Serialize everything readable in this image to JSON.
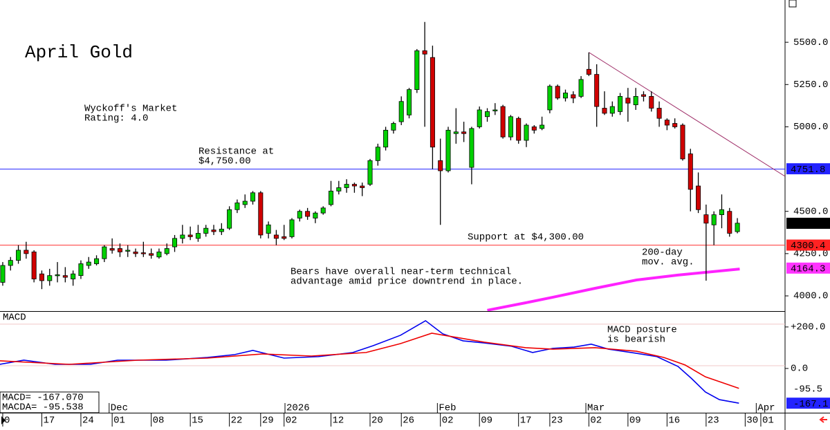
{
  "chart_data": {
    "type": "candlestick",
    "title": "April Gold",
    "xlim": [
      -0.35,
      100.1
    ],
    "xticks": [
      {
        "value": 0,
        "label": "0"
      },
      {
        "value": 5,
        "label": "17"
      },
      {
        "value": 10,
        "label": "24"
      },
      {
        "value": 14,
        "label": "01"
      },
      {
        "value": 19,
        "label": "08"
      },
      {
        "value": 24,
        "label": "15"
      },
      {
        "value": 29,
        "label": "22"
      },
      {
        "value": 33,
        "label": "29"
      },
      {
        "value": 36,
        "label": "02"
      },
      {
        "value": 42,
        "label": "12"
      },
      {
        "value": 47,
        "label": "20"
      },
      {
        "value": 51,
        "label": "26"
      },
      {
        "value": 56,
        "label": "02"
      },
      {
        "value": 61,
        "label": "09"
      },
      {
        "value": 66,
        "label": "17"
      },
      {
        "value": 70,
        "label": "23"
      },
      {
        "value": 75,
        "label": "02"
      },
      {
        "value": 80,
        "label": "09"
      },
      {
        "value": 85,
        "label": "16"
      },
      {
        "value": 90,
        "label": "23"
      },
      {
        "value": 95,
        "label": "30"
      },
      {
        "value": 97,
        "label": "01"
      }
    ],
    "month_labels": [
      {
        "value": 14.5,
        "label": "Dec"
      },
      {
        "value": 37,
        "label": "2026"
      },
      {
        "value": 56.5,
        "label": "Feb"
      },
      {
        "value": 75.5,
        "label": "Mar"
      },
      {
        "value": 97.3,
        "label": "Apr"
      }
    ],
    "ylim": [
      3910,
      5750
    ],
    "yticks": [
      {
        "value": 4000,
        "label": "4000.0"
      },
      {
        "value": 4250,
        "label": "4250.0"
      },
      {
        "value": 4500,
        "label": "4500.0"
      },
      {
        "value": 5000,
        "label": "5000.0"
      },
      {
        "value": 5250,
        "label": "5250.0"
      },
      {
        "value": 5500,
        "label": "5500.0"
      }
    ],
    "up_color": "#00d000",
    "down_color": "#d00000",
    "candles": [
      {
        "open": 4080,
        "high": 4200,
        "low": 4060,
        "close": 4180
      },
      {
        "open": 4180,
        "high": 4230,
        "low": 4150,
        "close": 4210
      },
      {
        "open": 4210,
        "high": 4300,
        "low": 4190,
        "close": 4270
      },
      {
        "open": 4270,
        "high": 4320,
        "low": 4220,
        "close": 4250
      },
      {
        "open": 4260,
        "high": 4270,
        "low": 4080,
        "close": 4100
      },
      {
        "open": 4130,
        "high": 4150,
        "low": 4040,
        "close": 4090
      },
      {
        "open": 4090,
        "high": 4160,
        "low": 4060,
        "close": 4120
      },
      {
        "open": 4120,
        "high": 4200,
        "low": 4080,
        "close": 4125
      },
      {
        "open": 4120,
        "high": 4170,
        "low": 4080,
        "close": 4110
      },
      {
        "open": 4100,
        "high": 4150,
        "low": 4060,
        "close": 4130
      },
      {
        "open": 4120,
        "high": 4210,
        "low": 4100,
        "close": 4190
      },
      {
        "open": 4180,
        "high": 4230,
        "low": 4160,
        "close": 4200
      },
      {
        "open": 4190,
        "high": 4240,
        "low": 4180,
        "close": 4220
      },
      {
        "open": 4220,
        "high": 4300,
        "low": 4200,
        "close": 4290
      },
      {
        "open": 4280,
        "high": 4340,
        "low": 4250,
        "close": 4270
      },
      {
        "open": 4280,
        "high": 4310,
        "low": 4230,
        "close": 4260
      },
      {
        "open": 4265,
        "high": 4300,
        "low": 4230,
        "close": 4270
      },
      {
        "open": 4260,
        "high": 4280,
        "low": 4230,
        "close": 4250
      },
      {
        "open": 4255,
        "high": 4320,
        "low": 4230,
        "close": 4250
      },
      {
        "open": 4250,
        "high": 4280,
        "low": 4220,
        "close": 4240
      },
      {
        "open": 4230,
        "high": 4280,
        "low": 4220,
        "close": 4260
      },
      {
        "open": 4250,
        "high": 4310,
        "low": 4240,
        "close": 4280
      },
      {
        "open": 4290,
        "high": 4360,
        "low": 4260,
        "close": 4340
      },
      {
        "open": 4340,
        "high": 4420,
        "low": 4310,
        "close": 4360
      },
      {
        "open": 4360,
        "high": 4410,
        "low": 4330,
        "close": 4350
      },
      {
        "open": 4340,
        "high": 4420,
        "low": 4320,
        "close": 4370
      },
      {
        "open": 4370,
        "high": 4420,
        "low": 4350,
        "close": 4400
      },
      {
        "open": 4390,
        "high": 4420,
        "low": 4360,
        "close": 4380
      },
      {
        "open": 4380,
        "high": 4430,
        "low": 4360,
        "close": 4395
      },
      {
        "open": 4400,
        "high": 4530,
        "low": 4390,
        "close": 4510
      },
      {
        "open": 4510,
        "high": 4570,
        "low": 4490,
        "close": 4550
      },
      {
        "open": 4540,
        "high": 4600,
        "low": 4520,
        "close": 4560
      },
      {
        "open": 4560,
        "high": 4620,
        "low": 4540,
        "close": 4610
      },
      {
        "open": 4610,
        "high": 4620,
        "low": 4340,
        "close": 4360
      },
      {
        "open": 4370,
        "high": 4440,
        "low": 4340,
        "close": 4420
      },
      {
        "open": 4360,
        "high": 4390,
        "low": 4300,
        "close": 4340
      },
      {
        "open": 4350,
        "high": 4420,
        "low": 4330,
        "close": 4340
      },
      {
        "open": 4350,
        "high": 4460,
        "low": 4340,
        "close": 4450
      },
      {
        "open": 4460,
        "high": 4510,
        "low": 4440,
        "close": 4500
      },
      {
        "open": 4500,
        "high": 4520,
        "low": 4450,
        "close": 4470
      },
      {
        "open": 4460,
        "high": 4500,
        "low": 4430,
        "close": 4490
      },
      {
        "open": 4490,
        "high": 4530,
        "low": 4480,
        "close": 4520
      },
      {
        "open": 4540,
        "high": 4680,
        "low": 4530,
        "close": 4620
      },
      {
        "open": 4620,
        "high": 4680,
        "low": 4600,
        "close": 4640
      },
      {
        "open": 4640,
        "high": 4690,
        "low": 4610,
        "close": 4660
      },
      {
        "open": 4660,
        "high": 4670,
        "low": 4610,
        "close": 4650
      },
      {
        "open": 4650,
        "high": 4670,
        "low": 4590,
        "close": 4640
      },
      {
        "open": 4660,
        "high": 4810,
        "low": 4650,
        "close": 4800
      },
      {
        "open": 4800,
        "high": 4900,
        "low": 4770,
        "close": 4880
      },
      {
        "open": 4880,
        "high": 5000,
        "low": 4860,
        "close": 4980
      },
      {
        "open": 4980,
        "high": 5030,
        "low": 4960,
        "close": 5020
      },
      {
        "open": 5030,
        "high": 5180,
        "low": 5010,
        "close": 5150
      },
      {
        "open": 5070,
        "high": 5230,
        "low": 5050,
        "close": 5220
      },
      {
        "open": 5220,
        "high": 5460,
        "low": 5200,
        "close": 5450
      },
      {
        "open": 5450,
        "high": 5620,
        "low": 5000,
        "close": 5430
      },
      {
        "open": 5410,
        "high": 5480,
        "low": 4750,
        "close": 4880
      },
      {
        "open": 4800,
        "high": 4930,
        "low": 4420,
        "close": 4740
      },
      {
        "open": 4740,
        "high": 5000,
        "low": 4730,
        "close": 4980
      },
      {
        "open": 4960,
        "high": 5110,
        "low": 4900,
        "close": 4970
      },
      {
        "open": 4970,
        "high": 5030,
        "low": 4910,
        "close": 4960
      },
      {
        "open": 4760,
        "high": 5000,
        "low": 4660,
        "close": 4990
      },
      {
        "open": 5000,
        "high": 5120,
        "low": 4990,
        "close": 5100
      },
      {
        "open": 5060,
        "high": 5110,
        "low": 5030,
        "close": 5090
      },
      {
        "open": 5100,
        "high": 5140,
        "low": 5070,
        "close": 5100
      },
      {
        "open": 5120,
        "high": 5130,
        "low": 4930,
        "close": 4940
      },
      {
        "open": 4940,
        "high": 5070,
        "low": 4920,
        "close": 5060
      },
      {
        "open": 5050,
        "high": 5060,
        "low": 4900,
        "close": 4920
      },
      {
        "open": 4920,
        "high": 5020,
        "low": 4880,
        "close": 5010
      },
      {
        "open": 5000,
        "high": 5010,
        "low": 4960,
        "close": 4980
      },
      {
        "open": 4990,
        "high": 5060,
        "low": 4980,
        "close": 5010
      },
      {
        "open": 5100,
        "high": 5250,
        "low": 5080,
        "close": 5240
      },
      {
        "open": 5240,
        "high": 5250,
        "low": 5160,
        "close": 5170
      },
      {
        "open": 5170,
        "high": 5220,
        "low": 5150,
        "close": 5200
      },
      {
        "open": 5190,
        "high": 5210,
        "low": 5140,
        "close": 5170
      },
      {
        "open": 5180,
        "high": 5300,
        "low": 5170,
        "close": 5280
      },
      {
        "open": 5340,
        "high": 5440,
        "low": 5300,
        "close": 5310
      },
      {
        "open": 5310,
        "high": 5370,
        "low": 5000,
        "close": 5120
      },
      {
        "open": 5110,
        "high": 5210,
        "low": 5070,
        "close": 5080
      },
      {
        "open": 5080,
        "high": 5150,
        "low": 5060,
        "close": 5120
      },
      {
        "open": 5090,
        "high": 5200,
        "low": 5070,
        "close": 5180
      },
      {
        "open": 5170,
        "high": 5230,
        "low": 5030,
        "close": 5140
      },
      {
        "open": 5130,
        "high": 5230,
        "low": 5100,
        "close": 5180
      },
      {
        "open": 5190,
        "high": 5210,
        "low": 5150,
        "close": 5180
      },
      {
        "open": 5180,
        "high": 5210,
        "low": 5090,
        "close": 5110
      },
      {
        "open": 5110,
        "high": 5150,
        "low": 5000,
        "close": 5050
      },
      {
        "open": 5040,
        "high": 5050,
        "low": 4980,
        "close": 5010
      },
      {
        "open": 5020,
        "high": 5050,
        "low": 4990,
        "close": 5000
      },
      {
        "open": 5010,
        "high": 5020,
        "low": 4800,
        "close": 4810
      },
      {
        "open": 4840,
        "high": 4870,
        "low": 4500,
        "close": 4630
      },
      {
        "open": 4650,
        "high": 4730,
        "low": 4490,
        "close": 4510
      },
      {
        "open": 4480,
        "high": 4540,
        "low": 4090,
        "close": 4430
      },
      {
        "open": 4420,
        "high": 4500,
        "low": 4300,
        "close": 4480
      },
      {
        "open": 4480,
        "high": 4600,
        "low": 4400,
        "close": 4510
      },
      {
        "open": 4500,
        "high": 4520,
        "low": 4350,
        "close": 4370
      },
      {
        "open": 4380,
        "high": 4460,
        "low": 4370,
        "close": 4430
      }
    ],
    "hlines": [
      {
        "value": 4750,
        "color": "#2222ff"
      },
      {
        "value": 4300,
        "color": "#ff3333"
      }
    ],
    "trendline": {
      "color": "#a0306a",
      "x": [
        75,
        100.1
      ],
      "values": [
        5440,
        4707
      ]
    },
    "moving_average": {
      "color": "#ff22ff",
      "x": [
        62,
        66.9,
        70.4,
        75.8,
        81.1,
        86.4,
        90.8,
        94.3
      ],
      "values": [
        3915,
        3959,
        3992,
        4045,
        4094,
        4123,
        4143,
        4159
      ]
    },
    "price_markers": [
      {
        "value": 4751.8,
        "color": "#2222ff"
      },
      {
        "value": 4429.4,
        "color": "#000000"
      },
      {
        "value": 4300.4,
        "color": "#ff2222"
      },
      {
        "value": 4164.3,
        "color": "#ff33ff"
      }
    ],
    "annotations": [
      {
        "lines": [
          "Wyckoff's Market",
          "Rating: 4.0"
        ],
        "color": "#000000"
      },
      {
        "lines": [
          "Resistance at",
          "$4,750.00"
        ],
        "color": "#2222ff"
      },
      {
        "lines": [
          "Support at $4,300.00"
        ],
        "color": "#ff2222"
      },
      {
        "lines": [
          "200-day",
          "mov. avg."
        ],
        "color": "#ff22ff"
      },
      {
        "lines": [
          "Bears have overall near-term technical",
          "advantage amid price downtrend in place."
        ],
        "color": "#000000"
      },
      {
        "lines": [
          "MACD posture",
          "is bearish"
        ],
        "color": "#000000"
      }
    ],
    "macd": {
      "title": "MACD",
      "ylim": [
        -213,
        273
      ],
      "yticks": [
        {
          "value": 200,
          "label": "+200.0"
        },
        {
          "value": 0,
          "label": "0.0"
        }
      ],
      "readouts": [
        "MACD= -167.070",
        "MACDA= -95.538"
      ],
      "series": [
        {
          "color": "#0000ee",
          "x": [
            -0.4,
            2.7,
            6.7,
            11.2,
            14.7,
            20.9,
            26.2,
            29.7,
            32,
            36,
            40.4,
            44.8,
            47.4,
            50.9,
            54.1,
            56.3,
            58.9,
            61.6,
            65.1,
            67.8,
            70.4,
            73.1,
            75.3,
            77.5,
            81.1,
            83.7,
            86.4,
            88.1,
            89.9,
            91.7,
            94.2
          ],
          "values": [
            20,
            40,
            20,
            20,
            40,
            40,
            53,
            67,
            87,
            50,
            57,
            77,
            110,
            160,
            230,
            167,
            133,
            123,
            107,
            77,
            97,
            103,
            117,
            93,
            73,
            57,
            10,
            -47,
            -113,
            -150,
            -167.07
          ]
        },
        {
          "color": "#ee0000",
          "x": [
            -0.4,
            8.5,
            17.3,
            26.2,
            33.3,
            39.5,
            46.5,
            50.9,
            54.9,
            58,
            61.6,
            66.9,
            70.4,
            75.8,
            81.1,
            84.6,
            87.3,
            89.9,
            94.2
          ],
          "values": [
            37,
            20,
            40,
            50,
            70,
            60,
            77,
            120,
            170,
            150,
            127,
            100,
            93,
            100,
            83,
            53,
            17,
            -40,
            -95.538
          ]
        }
      ],
      "markers": [
        {
          "value": -95.5,
          "color": "#ff2222"
        },
        {
          "value": -167.1,
          "color": "#2222ff"
        }
      ]
    }
  }
}
